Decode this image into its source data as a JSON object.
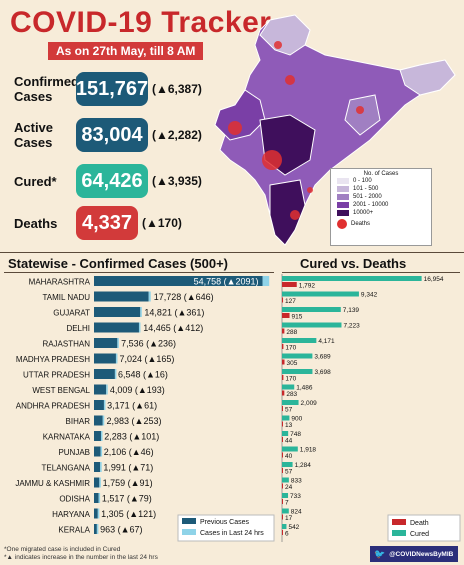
{
  "header": {
    "title": "COVID-19 Tracker",
    "subtitle": "As on 27th May, till 8 AM"
  },
  "stats": [
    {
      "label": "Confirmed\nCases",
      "value": "151,767",
      "delta": "(▲6,387)",
      "color": "#1d5a78"
    },
    {
      "label": "Active\nCases",
      "value": "83,004",
      "delta": "(▲2,282)",
      "color": "#1d5a78"
    },
    {
      "label": "Cured*",
      "value": "64,426",
      "delta": "(▲3,935)",
      "color": "#2bb59a"
    },
    {
      "label": "Deaths",
      "value": "4,337",
      "delta": "(▲170)",
      "color": "#d23a3a"
    }
  ],
  "map_legend": {
    "title": "No. of Cases",
    "items": [
      "0 - 100",
      "101 - 500",
      "501 - 2000",
      "2001 - 10000",
      "10000+"
    ],
    "colors": [
      "#e9e4f0",
      "#c7b7da",
      "#a07fc2",
      "#7a3fa6",
      "#3f0f5c"
    ],
    "deaths_label": "Deaths"
  },
  "left_section_title": "Statewise - Confirmed Cases (500+)",
  "right_section_title": "Cured vs. Deaths",
  "chart_data": [
    {
      "type": "bar",
      "title": "Statewise - Confirmed Cases (500+)",
      "categories": [
        "MAHARASHTRA",
        "TAMIL NADU",
        "GUJARAT",
        "DELHI",
        "RAJASTHAN",
        "MADHYA PRADESH",
        "UTTAR PRADESH",
        "WEST BENGAL",
        "ANDHRA PRADESH",
        "BIHAR",
        "KARNATAKA",
        "PUNJAB",
        "TELANGANA",
        "JAMMU & KASHMIR",
        "ODISHA",
        "HARYANA",
        "KERALA"
      ],
      "series": [
        {
          "name": "Previous Cases",
          "values": [
            52667,
            17082,
            14460,
            14053,
            7300,
            6859,
            6532,
            3816,
            3110,
            2730,
            2182,
            2060,
            1920,
            1668,
            1438,
            1184,
            896
          ]
        },
        {
          "name": "Cases in Last 24 hrs",
          "values": [
            2091,
            646,
            361,
            412,
            236,
            165,
            16,
            193,
            61,
            253,
            101,
            46,
            71,
            91,
            79,
            121,
            67
          ]
        }
      ],
      "labels": [
        "54,758 (▲2091)",
        "17,728 (▲646)",
        "14,821 (▲361)",
        "14,465 (▲412)",
        "7,536 (▲236)",
        "7,024 (▲165)",
        "6,548 (▲16)",
        "4,009 (▲193)",
        "3,171 (▲61)",
        "2,983 (▲253)",
        "2,283 (▲101)",
        "2,106 (▲46)",
        "1,991 (▲71)",
        "1,759 (▲91)",
        "1,517 (▲79)",
        "1,305 (▲121)",
        "963 (▲67)"
      ],
      "colors": {
        "previous": "#1d5a78",
        "last24": "#8fd3e8"
      }
    },
    {
      "type": "bar",
      "title": "Cured vs. Deaths",
      "categories": [
        "MAHARASHTRA",
        "TAMIL NADU",
        "GUJARAT",
        "DELHI",
        "RAJASTHAN",
        "MADHYA PRADESH",
        "UTTAR PRADESH",
        "WEST BENGAL",
        "ANDHRA PRADESH",
        "BIHAR",
        "KARNATAKA",
        "PUNJAB",
        "TELANGANA",
        "JAMMU & KASHMIR",
        "ODISHA",
        "HARYANA",
        "KERALA"
      ],
      "series": [
        {
          "name": "Cured",
          "values": [
            16954,
            9342,
            7139,
            7223,
            4171,
            3689,
            3698,
            1486,
            2009,
            900,
            748,
            1918,
            1284,
            833,
            733,
            824,
            542
          ]
        },
        {
          "name": "Death",
          "values": [
            1792,
            127,
            915,
            288,
            170,
            305,
            170,
            283,
            57,
            13,
            44,
            40,
            57,
            24,
            7,
            17,
            6
          ]
        }
      ],
      "colors": {
        "cured": "#2bb59a",
        "death": "#c8282b"
      }
    }
  ],
  "footnotes": [
    "*One migrated case is included in Cured",
    "*▲ indicates increase in the number in the last 24 hrs"
  ],
  "twitter_handle": "@COVIDNewsByMIB"
}
